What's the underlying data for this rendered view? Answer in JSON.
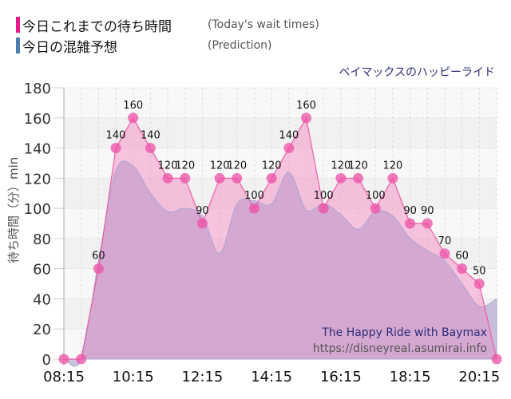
{
  "legend": {
    "actual": {
      "jp": "今日これまでの待ち時間",
      "en": "(Today's wait times)",
      "color": "#e8198b"
    },
    "prediction": {
      "jp": "今日の混雑予想",
      "en": "(Prediction)",
      "color": "#4a7fb0"
    }
  },
  "ride_title": "ベイマックスのハッピーライド",
  "watermark": {
    "line1": "The Happy Ride with Baymax",
    "line2": "https://disneyreal.asumirai.info"
  },
  "y_axis_label": "待ち時間（分）min",
  "chart_data": {
    "type": "area",
    "title": "ベイマックスのハッピーライド",
    "xlabel": "",
    "ylabel": "待ち時間（分）min",
    "ylim": [
      0,
      180
    ],
    "yticks": [
      0,
      20,
      40,
      60,
      80,
      100,
      120,
      140,
      160,
      180
    ],
    "xticks": [
      "08:15",
      "10:15",
      "12:15",
      "14:15",
      "16:15",
      "18:15",
      "20:15"
    ],
    "grid": true,
    "legend_position": "top-left",
    "x": [
      "08:15",
      "08:45",
      "09:15",
      "09:45",
      "10:15",
      "10:45",
      "11:15",
      "11:45",
      "12:15",
      "12:45",
      "13:15",
      "13:45",
      "14:15",
      "14:45",
      "15:15",
      "15:45",
      "16:15",
      "16:45",
      "17:15",
      "17:45",
      "18:15",
      "18:45",
      "19:15",
      "19:45",
      "20:15",
      "20:45"
    ],
    "series": [
      {
        "name": "今日これまでの待ち時間 (Today's wait times)",
        "color": "#e8198b",
        "values": [
          0,
          0,
          60,
          140,
          160,
          140,
          120,
          120,
          90,
          120,
          120,
          100,
          120,
          140,
          160,
          100,
          120,
          120,
          100,
          120,
          90,
          90,
          70,
          60,
          50,
          0
        ]
      },
      {
        "name": "今日の混雑予想 (Prediction)",
        "color": "#4a7fb0",
        "values": [
          0,
          0,
          65,
          125,
          128,
          110,
          98,
          100,
          95,
          70,
          103,
          105,
          103,
          124,
          99,
          103,
          96,
          86,
          98,
          95,
          80,
          72,
          65,
          50,
          35,
          40
        ]
      }
    ]
  }
}
